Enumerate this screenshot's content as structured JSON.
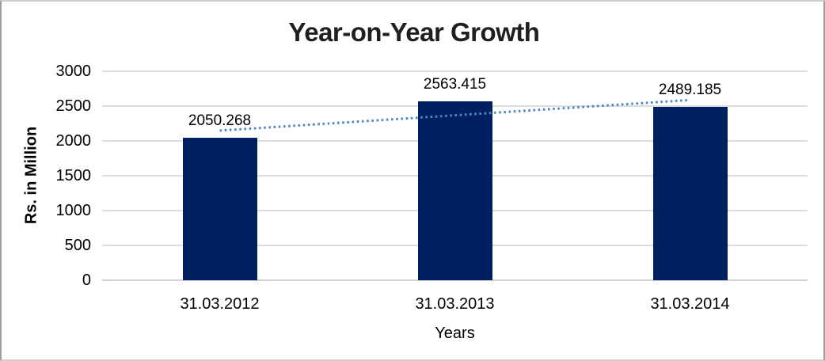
{
  "chart_data": {
    "type": "bar",
    "title": "Year-on-Year Growth",
    "xlabel": "Years",
    "ylabel": "Rs. in Million",
    "categories": [
      "31.03.2012",
      "31.03.2013",
      "31.03.2014"
    ],
    "values": [
      2050.268,
      2563.415,
      2489.185
    ],
    "data_labels": [
      "2050.268",
      "2563.415",
      "2489.185"
    ],
    "ylim": [
      0,
      3000
    ],
    "ytick_step": 500,
    "ytick_labels": [
      "0",
      "500",
      "1000",
      "1500",
      "2000",
      "2500",
      "3000"
    ],
    "grid": "horizontal",
    "legend_position": "none",
    "trendline": {
      "type": "linear",
      "style": "dotted",
      "color": "#4E86C8"
    },
    "colors": {
      "bar": "#002060",
      "gridline": "#DCDCDC",
      "axis_line": "#D2D2D2",
      "title_text": "#1F1F1F",
      "label_text": "#000000",
      "background": "#FFFFFF",
      "frame_border": "#9E9E9E"
    }
  }
}
